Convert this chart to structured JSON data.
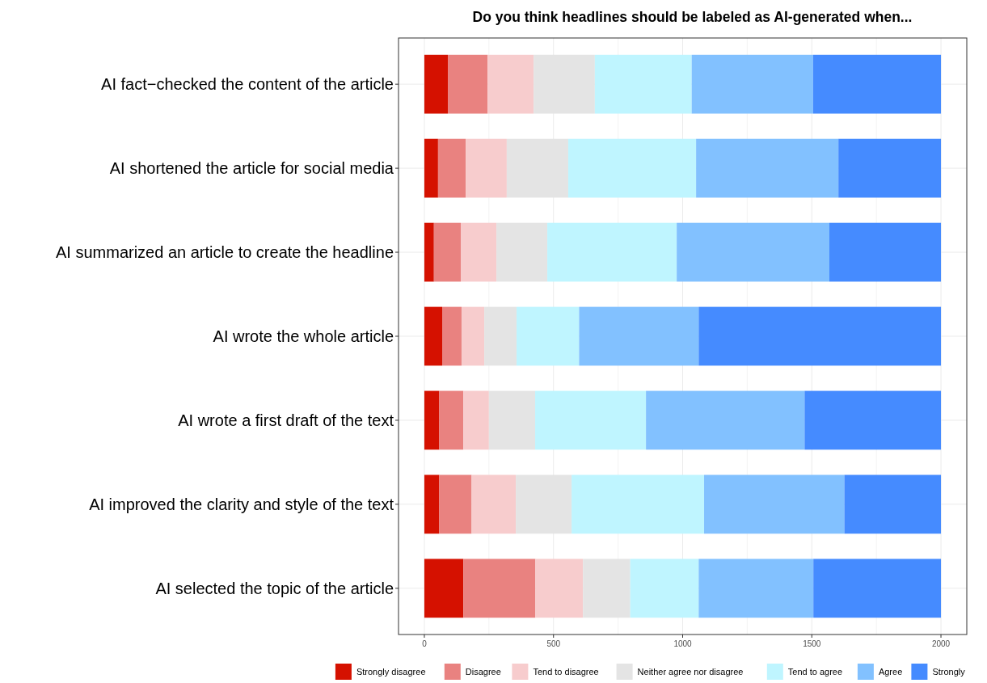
{
  "chart_data": {
    "type": "bar",
    "orientation": "horizontal",
    "stacked": true,
    "title": "Do you think headlines should be labeled as AI‑generated when...",
    "categories": [
      "AI fact−checked the content of the article",
      "AI shortened the article for social media",
      "AI summarized an article to create the headline",
      "AI wrote the whole article",
      "AI wrote a first draft of the text",
      "AI improved the clarity and style of the text",
      "AI selected the topic of the article"
    ],
    "series": [
      {
        "name": "Strongly disagree",
        "color": "#d51100",
        "values": [
          91,
          53,
          37,
          69,
          58,
          58,
          151
        ]
      },
      {
        "name": "Disagree",
        "color": "#e98280",
        "values": [
          154,
          107,
          104,
          75,
          93,
          125,
          279
        ]
      },
      {
        "name": "Tend to disagree",
        "color": "#f7cccd",
        "values": [
          178,
          159,
          138,
          88,
          99,
          171,
          184
        ]
      },
      {
        "name": "Neither agree nor disagree",
        "color": "#e4e4e4",
        "values": [
          237,
          238,
          197,
          125,
          179,
          216,
          183
        ]
      },
      {
        "name": "Tend to agree",
        "color": "#bff5ff",
        "values": [
          375,
          495,
          501,
          242,
          429,
          513,
          265
        ]
      },
      {
        "name": "Agree",
        "color": "#82c1ff",
        "values": [
          470,
          551,
          591,
          463,
          614,
          543,
          444
        ]
      },
      {
        "name": "Strongly",
        "color": "#458bff",
        "values": [
          495,
          397,
          432,
          938,
          528,
          374,
          494
        ]
      }
    ],
    "xlim": [
      -100,
      2100
    ],
    "xticks": [
      0,
      {
        "value": 250,
        "label": null
      },
      500,
      {
        "value": 750,
        "label": null
      },
      1000,
      {
        "value": 1250,
        "label": null
      },
      1500,
      {
        "value": 1750,
        "label": null
      },
      2000
    ],
    "grid": true,
    "legend": "bottom"
  }
}
